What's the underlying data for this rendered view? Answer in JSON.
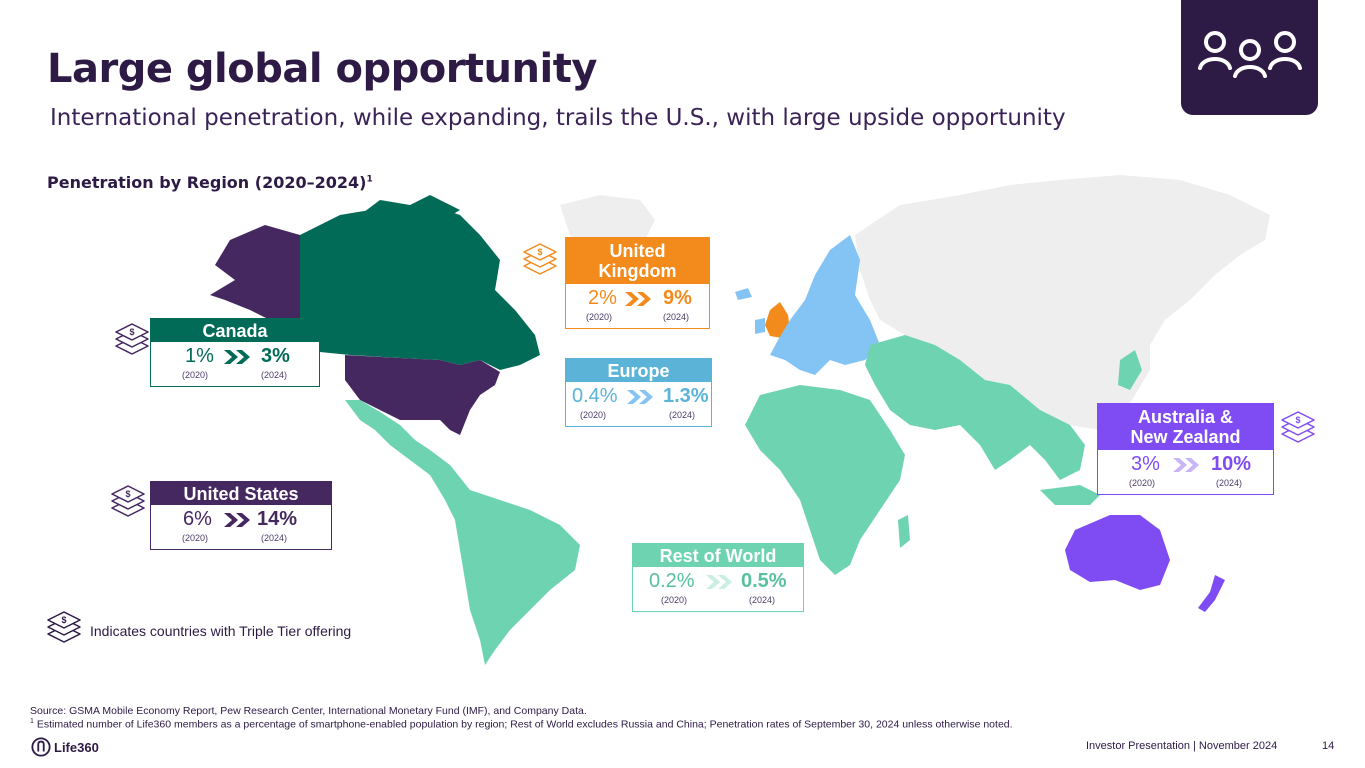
{
  "header": {
    "title": "Large global opportunity",
    "subtitle": "International penetration, while expanding, trails the U.S., with large upside opportunity",
    "section_title": "Penetration by Region (2020–2024)",
    "section_sup": "1",
    "brand_icon": "people-group-icon"
  },
  "colors": {
    "us": "#45285f",
    "canada": "#016b57",
    "uk": "#f28a1c",
    "europe": "#84c4f5",
    "rest_of_world": "#6ed3b1",
    "anz": "#7f4cf4",
    "unserved": "#eeeeee",
    "dark": "#2d1a45"
  },
  "regions": {
    "canada": {
      "name": "Canada",
      "from": "1%",
      "to": "3%",
      "from_year": "(2020)",
      "to_year": "(2024)"
    },
    "us": {
      "name": "United States",
      "from": "6%",
      "to": "14%",
      "from_year": "(2020)",
      "to_year": "(2024)"
    },
    "uk": {
      "name_line1": "United",
      "name_line2": "Kingdom",
      "from": "2%",
      "to": "9%",
      "from_year": "(2020)",
      "to_year": "(2024)"
    },
    "europe": {
      "name": "Europe",
      "from": "0.4%",
      "to": "1.3%",
      "from_year": "(2020)",
      "to_year": "(2024)"
    },
    "rest_of_world": {
      "name": "Rest of World",
      "from": "0.2%",
      "to": "0.5%",
      "from_year": "(2020)",
      "to_year": "(2024)"
    },
    "anz": {
      "name_line1": "Australia &",
      "name_line2": "New Zealand",
      "from": "3%",
      "to": "10%",
      "from_year": "(2020)",
      "to_year": "(2024)"
    }
  },
  "legend": {
    "icon": "triple-tier-stack-icon",
    "text": "Indicates countries with Triple Tier offering"
  },
  "footer": {
    "source": "Source: GSMA Mobile Economy Report, Pew Research Center, International Monetary Fund (IMF), and Company Data.",
    "footnote_sup": "1",
    "footnote": " Estimated number of Life360 members as a percentage of smartphone-enabled population by region; Rest of World excludes Russia and China; Penetration rates of September 30, 2024 unless otherwise noted.",
    "logo": "Life360",
    "right": "Investor Presentation  |  November 2024",
    "page": "14"
  }
}
